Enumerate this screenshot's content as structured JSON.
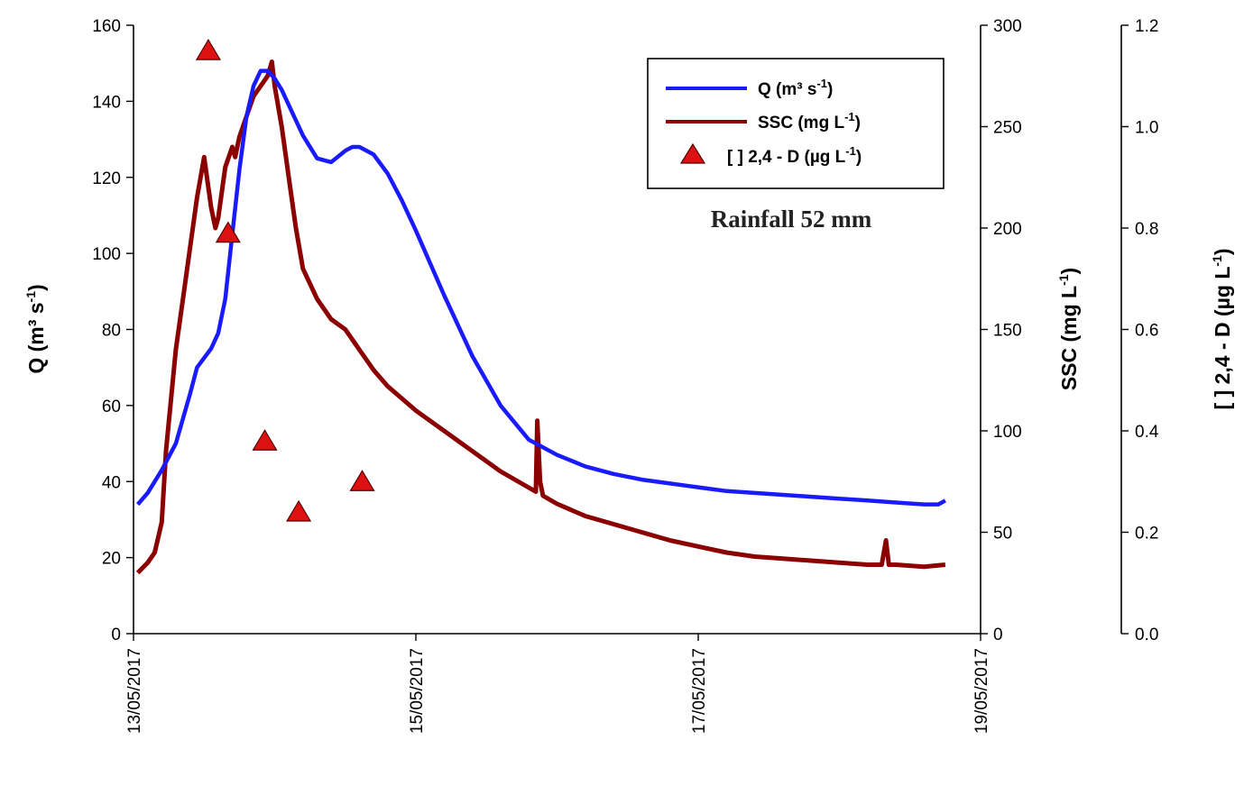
{
  "chart_data": {
    "type": "line",
    "annotation": "Rainfall 52 mm",
    "x_axis": {
      "ticks": [
        "13/05/2017",
        "15/05/2017",
        "17/05/2017",
        "19/05/2017"
      ],
      "range_days": [
        0,
        6
      ]
    },
    "y_left": {
      "label_main": "Q (m³ s",
      "label_sup": "-1",
      "label_end": ")",
      "range": [
        0,
        160
      ],
      "ticks": [
        "0",
        "20",
        "40",
        "60",
        "80",
        "100",
        "120",
        "140",
        "160"
      ]
    },
    "y_right1": {
      "label_main": "SSC (mg L",
      "label_sup": "-1",
      "label_end": ")",
      "range": [
        0,
        300
      ],
      "ticks": [
        "0",
        "50",
        "100",
        "150",
        "200",
        "250",
        "300"
      ]
    },
    "y_right2": {
      "label_main": "[ ] 2,4 - D (µg L",
      "label_sup": "-1",
      "label_end": ")",
      "range": [
        0,
        1.2
      ],
      "ticks": [
        "0.0",
        "0.2",
        "0.4",
        "0.6",
        "0.8",
        "1.0",
        "1.2"
      ]
    },
    "legend": [
      {
        "label_main": "Q (m³ s",
        "label_sup": "-1",
        "label_end": ")",
        "marker": "line",
        "color": "#1a1aff"
      },
      {
        "label_main": "SSC (mg L",
        "label_sup": "-1",
        "label_end": ")",
        "marker": "line",
        "color": "#8b0000"
      },
      {
        "label_main": "[  ] 2,4 - D (µg L",
        "label_sup": "-1",
        "label_end": ")",
        "marker": "triangle",
        "color": "#dd1111"
      }
    ],
    "series": [
      {
        "name": "Q (m³ s-1)",
        "axis": "left",
        "color": "#1a1aff",
        "x_days": [
          0.03,
          0.1,
          0.2,
          0.3,
          0.4,
          0.45,
          0.55,
          0.6,
          0.65,
          0.7,
          0.75,
          0.8,
          0.85,
          0.9,
          0.95,
          1.0,
          1.05,
          1.1,
          1.2,
          1.3,
          1.4,
          1.5,
          1.55,
          1.6,
          1.7,
          1.8,
          1.9,
          2.0,
          2.2,
          2.4,
          2.6,
          2.8,
          3.0,
          3.2,
          3.4,
          3.6,
          3.8,
          4.0,
          4.2,
          4.4,
          4.6,
          4.8,
          5.0,
          5.2,
          5.4,
          5.6,
          5.7,
          5.75
        ],
        "values": [
          34,
          37,
          43,
          50,
          63,
          70,
          75,
          79,
          88,
          105,
          122,
          136,
          144,
          148,
          148,
          146,
          143,
          139,
          131,
          125,
          124,
          127,
          128,
          128,
          126,
          121,
          114,
          106,
          89,
          73,
          60,
          51,
          47,
          44,
          42,
          40.5,
          39.5,
          38.5,
          37.5,
          37,
          36.5,
          36,
          35.5,
          35,
          34.5,
          34,
          34,
          35
        ]
      },
      {
        "name": "SSC (mg L-1)",
        "axis": "right1",
        "color": "#8b0000",
        "x_days": [
          0.03,
          0.1,
          0.15,
          0.2,
          0.23,
          0.3,
          0.35,
          0.4,
          0.45,
          0.5,
          0.55,
          0.58,
          0.6,
          0.65,
          0.7,
          0.72,
          0.75,
          0.8,
          0.85,
          0.9,
          0.95,
          0.98,
          1.0,
          1.05,
          1.1,
          1.15,
          1.2,
          1.3,
          1.4,
          1.5,
          1.6,
          1.7,
          1.8,
          2.0,
          2.2,
          2.4,
          2.6,
          2.8,
          2.85,
          2.86,
          2.88,
          2.9,
          3.0,
          3.2,
          3.4,
          3.6,
          3.8,
          4.0,
          4.2,
          4.4,
          4.6,
          4.8,
          5.0,
          5.2,
          5.3,
          5.33,
          5.35,
          5.4,
          5.6,
          5.75
        ],
        "values": [
          30,
          35,
          40,
          55,
          90,
          140,
          165,
          190,
          215,
          235,
          210,
          200,
          205,
          230,
          240,
          235,
          245,
          255,
          265,
          270,
          275,
          282,
          270,
          250,
          225,
          200,
          180,
          165,
          155,
          150,
          140,
          130,
          122,
          110,
          100,
          90,
          80,
          72,
          70,
          105,
          75,
          68,
          64,
          58,
          54,
          50,
          46,
          43,
          40,
          38,
          37,
          36,
          35,
          34,
          34,
          46,
          34,
          34,
          33,
          34
        ]
      },
      {
        "name": "[ ] 2,4 - D (µg L-1)",
        "axis": "right2",
        "color": "#dd1111",
        "marker": "triangle",
        "x_days": [
          0.53,
          0.67,
          0.93,
          1.17,
          1.62
        ],
        "values": [
          1.15,
          0.79,
          0.38,
          0.24,
          0.3
        ]
      }
    ]
  }
}
